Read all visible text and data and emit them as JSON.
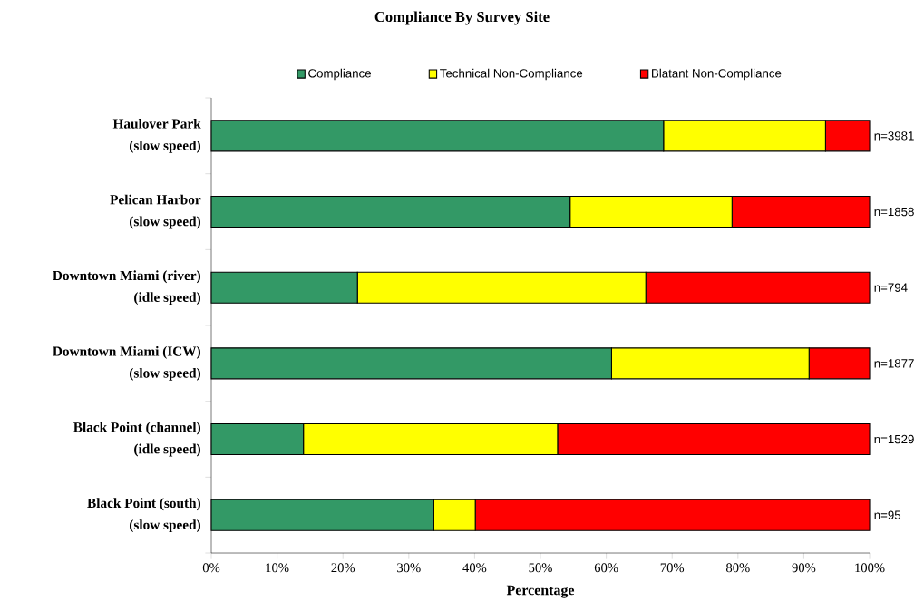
{
  "chart_data": {
    "type": "bar",
    "orientation": "horizontal",
    "stacked": true,
    "title": "Compliance By Survey Site",
    "xlabel": "Percentage",
    "categories": [
      "**Haulover Park**\n(slow speed)",
      "**Pelican Harbor**\n(slow speed)",
      "**Downtown Miami (river)**\n(idle speed)",
      "**Downtown Miami (ICW)**\n(slow speed)",
      "**Black Point (channel)**\n(idle speed)",
      "**Black Point (south)**\n(slow speed)"
    ],
    "series": [
      {
        "name": "Compliance",
        "color": "#339966",
        "values": [
          68.7,
          54.5,
          22.2,
          60.8,
          14.0,
          33.8
        ]
      },
      {
        "name": "Technical Non-Compliance",
        "color": "#ffff00",
        "values": [
          24.6,
          24.6,
          43.8,
          30.0,
          38.6,
          6.3
        ]
      },
      {
        "name": "Blatant Non-Compliance",
        "color": "#ff0000",
        "values": [
          6.7,
          20.9,
          34.0,
          9.2,
          47.4,
          59.9
        ]
      }
    ],
    "annotations": [
      "n=3981",
      "n=1858",
      "n=794",
      "n=1877",
      "n=1529",
      "n=95"
    ],
    "xlim": [
      0,
      100
    ],
    "xticks": [
      {
        "value": 0,
        "label": "0%"
      },
      {
        "value": 10,
        "label": "10%"
      },
      {
        "value": 20,
        "label": "20%"
      },
      {
        "value": 30,
        "label": "30%"
      },
      {
        "value": 40,
        "label": "40%"
      },
      {
        "value": 50,
        "label": "50%"
      },
      {
        "value": 60,
        "label": "60%"
      },
      {
        "value": 70,
        "label": "70%"
      },
      {
        "value": 80,
        "label": "80%"
      },
      {
        "value": 90,
        "label": "90%"
      },
      {
        "value": 100,
        "label": "100%"
      }
    ],
    "legend": "top",
    "grid": false
  }
}
